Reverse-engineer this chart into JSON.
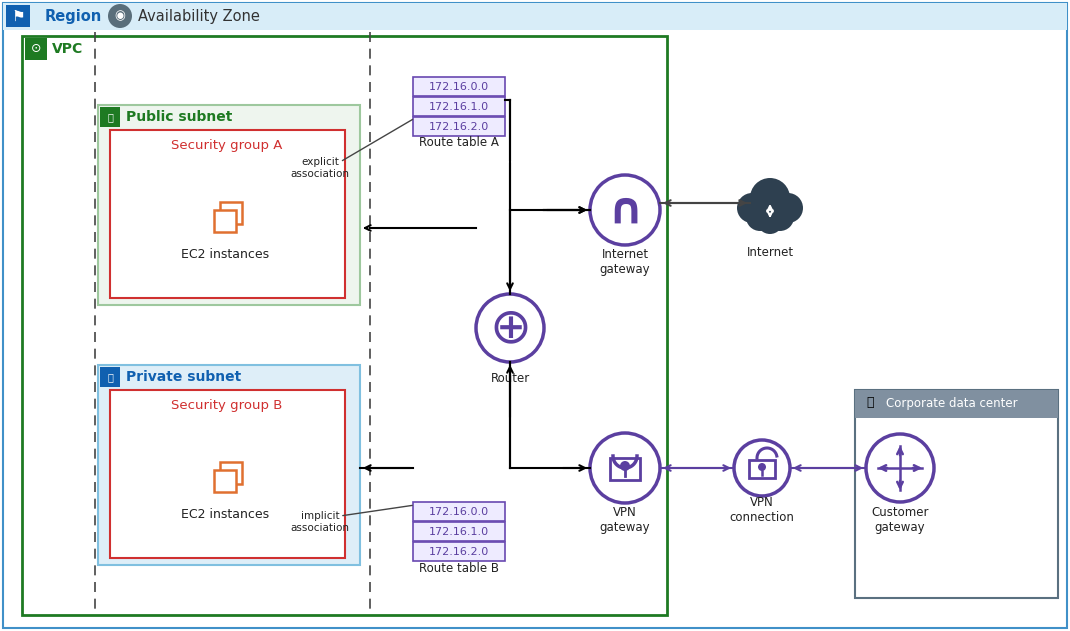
{
  "bg_color": "#ffffff",
  "region_label": "Region",
  "az_label": "Availability Zone",
  "vpc_label": "VPC",
  "public_subnet_label": "Public subnet",
  "private_subnet_label": "Private subnet",
  "sg_a_label": "Security group A",
  "sg_b_label": "Security group B",
  "ec2_label": "EC2 instances",
  "route_table_a_label": "Route table A",
  "route_table_b_label": "Route table B",
  "route_entries": [
    "172.16.0.0",
    "172.16.1.0",
    "172.16.2.0"
  ],
  "explicit_label": "explicit\nassociation",
  "implicit_label": "implicit\nassociation",
  "igw_label": "Internet\ngateway",
  "internet_label": "Internet",
  "router_label": "Router",
  "vpng_label": "VPN\ngateway",
  "vpnc_label": "VPN\nconnection",
  "custg_label": "Customer\ngateway",
  "corp_label": "Corporate data center",
  "purple": "#5b3fa0",
  "orange": "#e07030",
  "green_dark": "#1e7a22",
  "green_subnet_fill": "#eef5ee",
  "green_subnet_border": "#9ec89e",
  "blue_dark": "#1060b0",
  "blue_subnet_fill": "#deeef8",
  "blue_subnet_border": "#80c0e0",
  "blue_header_fill": "#d8edf8",
  "blue_outer_border": "#4090c8",
  "red_border": "#d03030",
  "red_text": "#d03030",
  "green_text": "#1e7a22",
  "blue_text": "#1060b0",
  "route_bg": "#eeebff",
  "route_border": "#6848b0",
  "route_text": "#5b3fa0",
  "dark_cloud": "#2e4050",
  "gray_dc": "#5a7080",
  "white": "#ffffff",
  "black": "#000000"
}
